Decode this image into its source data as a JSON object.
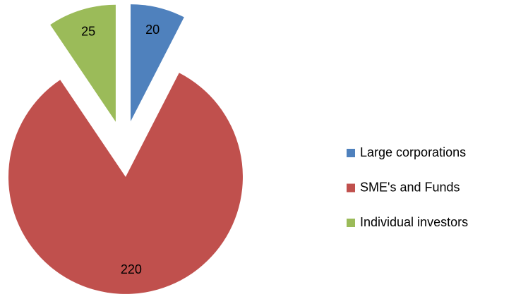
{
  "chart_data": {
    "type": "pie",
    "categories": [
      "Large corporations",
      "SME's and Funds",
      "Individual investors"
    ],
    "values": [
      20,
      220,
      25
    ],
    "colors": [
      "#4f81bd",
      "#c0504d",
      "#9bbb59"
    ],
    "exploded": true,
    "legend": "right"
  }
}
